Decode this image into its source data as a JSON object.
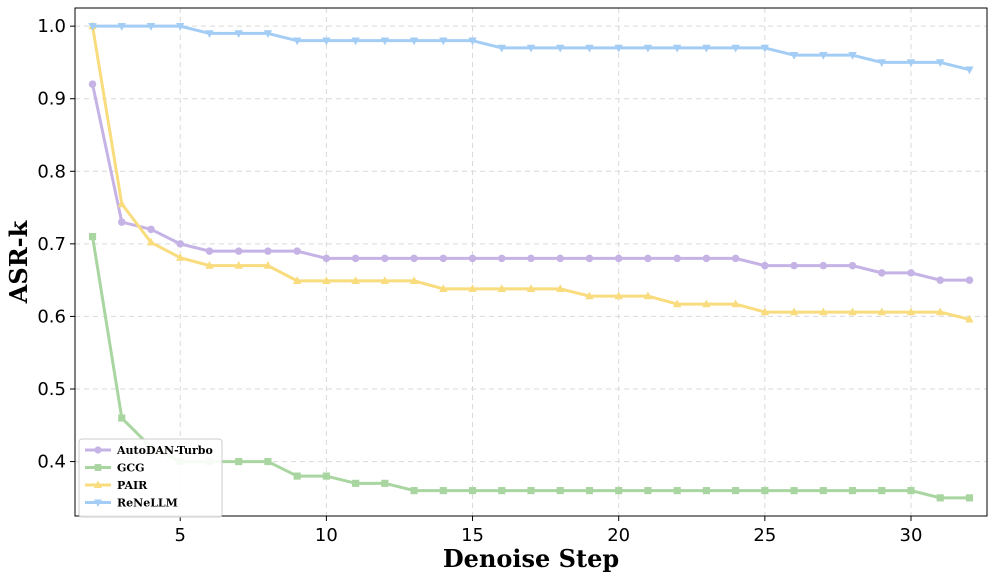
{
  "chart_data": {
    "type": "line",
    "xlabel": "Denoise Step",
    "ylabel": "ASR-k",
    "xlim": [
      1.4,
      32.6
    ],
    "ylim": [
      0.325,
      1.025
    ],
    "xticks": [
      5,
      10,
      15,
      20,
      25,
      30
    ],
    "yticks": [
      0.4,
      0.5,
      0.6,
      0.7,
      0.8,
      0.9,
      1.0
    ],
    "grid": true,
    "legend_position": "bottom-left",
    "x": [
      2,
      3,
      4,
      5,
      6,
      7,
      8,
      9,
      10,
      11,
      12,
      13,
      14,
      15,
      16,
      17,
      18,
      19,
      20,
      21,
      22,
      23,
      24,
      25,
      26,
      27,
      28,
      29,
      30,
      31,
      32
    ],
    "series": [
      {
        "name": "AutoDAN-Turbo",
        "color": "#c6b3e6",
        "marker": "circle",
        "values": [
          0.92,
          0.73,
          0.72,
          0.7,
          0.69,
          0.69,
          0.69,
          0.69,
          0.68,
          0.68,
          0.68,
          0.68,
          0.68,
          0.68,
          0.68,
          0.68,
          0.68,
          0.68,
          0.68,
          0.68,
          0.68,
          0.68,
          0.68,
          0.67,
          0.67,
          0.67,
          0.67,
          0.66,
          0.66,
          0.65,
          0.65
        ]
      },
      {
        "name": "GCG",
        "color": "#a8d5a0",
        "marker": "square",
        "values": [
          0.71,
          0.46,
          0.42,
          0.4,
          0.4,
          0.4,
          0.4,
          0.38,
          0.38,
          0.37,
          0.37,
          0.36,
          0.36,
          0.36,
          0.36,
          0.36,
          0.36,
          0.36,
          0.36,
          0.36,
          0.36,
          0.36,
          0.36,
          0.36,
          0.36,
          0.36,
          0.36,
          0.36,
          0.36,
          0.35,
          0.35
        ]
      },
      {
        "name": "PAIR",
        "color": "#f8dc7e",
        "marker": "triangle-up",
        "values": [
          1.0,
          0.755,
          0.702,
          0.681,
          0.67,
          0.67,
          0.67,
          0.649,
          0.649,
          0.649,
          0.649,
          0.649,
          0.638,
          0.638,
          0.638,
          0.638,
          0.638,
          0.628,
          0.628,
          0.628,
          0.617,
          0.617,
          0.617,
          0.606,
          0.606,
          0.606,
          0.606,
          0.606,
          0.606,
          0.606,
          0.596
        ]
      },
      {
        "name": "ReNeLLM",
        "color": "#a3cdf5",
        "marker": "triangle-down",
        "values": [
          1.0,
          1.0,
          1.0,
          1.0,
          0.99,
          0.99,
          0.99,
          0.98,
          0.98,
          0.98,
          0.98,
          0.98,
          0.98,
          0.98,
          0.97,
          0.97,
          0.97,
          0.97,
          0.97,
          0.97,
          0.97,
          0.97,
          0.97,
          0.97,
          0.96,
          0.96,
          0.96,
          0.95,
          0.95,
          0.95,
          0.94
        ]
      }
    ]
  }
}
